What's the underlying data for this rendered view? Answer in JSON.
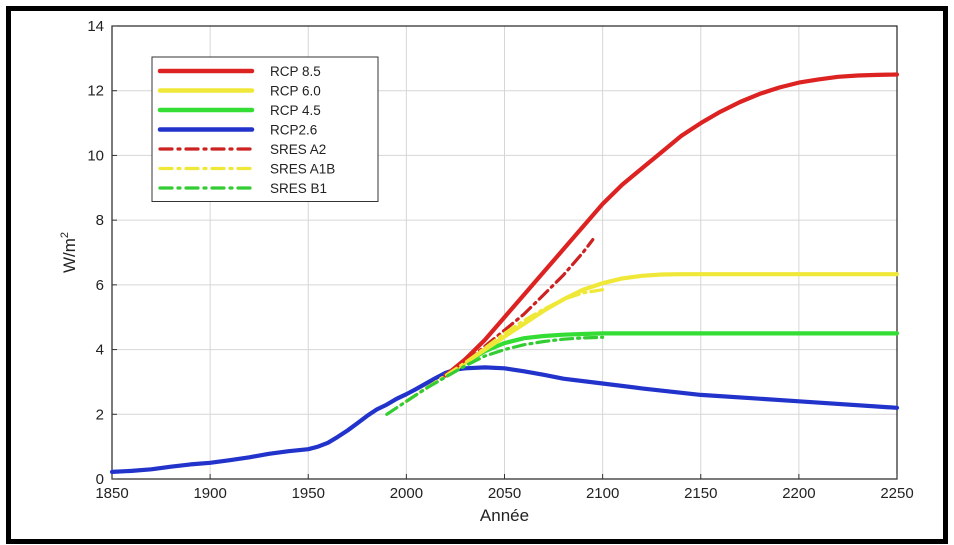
{
  "chart_data": {
    "type": "line",
    "xlabel": "Année",
    "ylabel": "W/m",
    "ylabel_superscript": "2",
    "xlim": [
      1850,
      2250
    ],
    "ylim": [
      0,
      14
    ],
    "xticks": [
      "1850",
      "1900",
      "1950",
      "2000",
      "2050",
      "2100",
      "2150",
      "2200",
      "2250"
    ],
    "yticks": [
      "0",
      "2",
      "4",
      "6",
      "8",
      "10",
      "12",
      "14"
    ],
    "grid": true,
    "legend_position": "top-left",
    "series": [
      {
        "name": "RCP 8.5",
        "color": "#dd2222",
        "style": "solid",
        "x": [
          2020,
          2030,
          2040,
          2050,
          2060,
          2070,
          2080,
          2090,
          2100,
          2110,
          2120,
          2130,
          2140,
          2150,
          2160,
          2170,
          2180,
          2190,
          2200,
          2210,
          2220,
          2230,
          2240,
          2250
        ],
        "y": [
          3.2,
          3.7,
          4.3,
          5.0,
          5.7,
          6.4,
          7.1,
          7.8,
          8.5,
          9.1,
          9.6,
          10.1,
          10.6,
          11.0,
          11.35,
          11.65,
          11.9,
          12.1,
          12.25,
          12.35,
          12.43,
          12.47,
          12.49,
          12.5
        ]
      },
      {
        "name": "RCP 6.0",
        "color": "#f0e838",
        "style": "solid",
        "x": [
          2020,
          2030,
          2040,
          2050,
          2060,
          2070,
          2080,
          2090,
          2100,
          2110,
          2120,
          2130,
          2140,
          2150,
          2200,
          2250
        ],
        "y": [
          3.2,
          3.6,
          4.0,
          4.4,
          4.8,
          5.2,
          5.55,
          5.85,
          6.05,
          6.2,
          6.28,
          6.32,
          6.33,
          6.33,
          6.33,
          6.33
        ]
      },
      {
        "name": "RCP 4.5",
        "color": "#33dd33",
        "style": "solid",
        "x": [
          2020,
          2030,
          2040,
          2050,
          2060,
          2070,
          2080,
          2090,
          2100,
          2110,
          2120,
          2150,
          2200,
          2250
        ],
        "y": [
          3.2,
          3.6,
          3.95,
          4.2,
          4.35,
          4.42,
          4.46,
          4.48,
          4.5,
          4.5,
          4.5,
          4.5,
          4.5,
          4.5
        ]
      },
      {
        "name": "RCP2.6",
        "color": "#2233cc",
        "style": "solid",
        "x": [
          1850,
          1860,
          1870,
          1880,
          1890,
          1900,
          1910,
          1920,
          1930,
          1940,
          1950,
          1955,
          1960,
          1965,
          1970,
          1975,
          1980,
          1985,
          1990,
          1995,
          2000,
          2005,
          2010,
          2015,
          2020,
          2025,
          2030,
          2040,
          2050,
          2060,
          2070,
          2080,
          2100,
          2120,
          2150,
          2200,
          2250
        ],
        "y": [
          0.22,
          0.25,
          0.3,
          0.38,
          0.45,
          0.5,
          0.58,
          0.67,
          0.78,
          0.86,
          0.92,
          1.0,
          1.12,
          1.3,
          1.5,
          1.72,
          1.95,
          2.15,
          2.3,
          2.48,
          2.62,
          2.78,
          2.95,
          3.12,
          3.28,
          3.38,
          3.42,
          3.45,
          3.42,
          3.33,
          3.22,
          3.1,
          2.95,
          2.8,
          2.6,
          2.4,
          2.2
        ]
      },
      {
        "name": "SRES A2",
        "color": "#cc2222",
        "style": "dashdot",
        "x": [
          2000,
          2010,
          2020,
          2030,
          2040,
          2050,
          2060,
          2070,
          2080,
          2090,
          2095
        ],
        "y": [
          2.4,
          2.8,
          3.2,
          3.6,
          4.1,
          4.6,
          5.1,
          5.7,
          6.3,
          7.0,
          7.4
        ]
      },
      {
        "name": "SRES A1B",
        "color": "#f0e838",
        "style": "dashdot",
        "x": [
          2000,
          2010,
          2020,
          2030,
          2040,
          2050,
          2060,
          2070,
          2080,
          2090,
          2100
        ],
        "y": [
          2.4,
          2.8,
          3.2,
          3.6,
          4.05,
          4.5,
          4.9,
          5.25,
          5.55,
          5.75,
          5.85
        ]
      },
      {
        "name": "SRES B1",
        "color": "#33cc33",
        "style": "dashdot",
        "x": [
          1990,
          2000,
          2010,
          2020,
          2030,
          2040,
          2050,
          2060,
          2070,
          2080,
          2090,
          2100
        ],
        "y": [
          2.0,
          2.4,
          2.8,
          3.15,
          3.5,
          3.8,
          4.0,
          4.15,
          4.25,
          4.32,
          4.36,
          4.38
        ]
      }
    ]
  }
}
